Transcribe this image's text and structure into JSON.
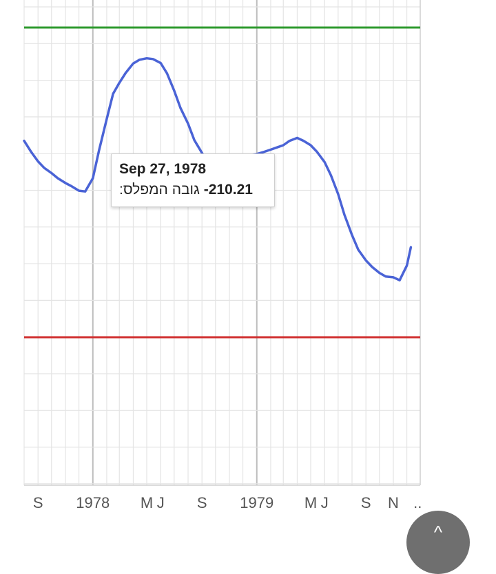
{
  "chart_data": {
    "type": "line",
    "title": "",
    "xlabel": "",
    "ylabel": "",
    "x_tick_labels": [
      "S",
      "1978",
      "M",
      "J",
      "S",
      "1979",
      "M",
      "J",
      "S",
      "N",
      ".."
    ],
    "grid": true,
    "reference_lines": [
      {
        "name": "upper",
        "color": "#2e9a2e"
      },
      {
        "name": "lower",
        "color": "#d03030"
      }
    ],
    "series": [
      {
        "color": "#4a63d6",
        "x": [
          "1977-08-01",
          "1977-08-16",
          "1977-09-01",
          "1977-09-15",
          "1977-10-01",
          "1977-10-15",
          "1977-11-01",
          "1977-11-15",
          "1977-12-01",
          "1977-12-15",
          "1978-01-01",
          "1978-01-15",
          "1978-02-01",
          "1978-02-15",
          "1978-03-01",
          "1978-03-15",
          "1978-04-01",
          "1978-04-15",
          "1978-05-01",
          "1978-05-15",
          "1978-06-01",
          "1978-06-15",
          "1978-07-01",
          "1978-07-15",
          "1978-08-01",
          "1978-08-15",
          "1978-09-01",
          "1978-09-15",
          "1978-09-27",
          "1978-10-15",
          "1978-11-01",
          "1978-11-15",
          "1978-12-01",
          "1978-12-15",
          "1979-01-01",
          "1979-01-15",
          "1979-02-01",
          "1979-02-15",
          "1979-03-01",
          "1979-03-15",
          "1979-04-01",
          "1979-04-15",
          "1979-05-01",
          "1979-05-15",
          "1979-06-01",
          "1979-06-15",
          "1979-07-01",
          "1979-07-15",
          "1979-08-01",
          "1979-08-15",
          "1979-09-01",
          "1979-09-15",
          "1979-10-01",
          "1979-10-15",
          "1979-11-01",
          "1979-11-15",
          "1979-12-01",
          "1979-12-10"
        ],
        "values": [
          -209.4,
          -209.69,
          -209.96,
          -210.14,
          -210.28,
          -210.42,
          -210.55,
          -210.64,
          -210.76,
          -210.78,
          -210.42,
          -209.65,
          -208.8,
          -208.12,
          -207.82,
          -207.55,
          -207.29,
          -207.19,
          -207.15,
          -207.17,
          -207.28,
          -207.56,
          -208.03,
          -208.5,
          -208.93,
          -209.38,
          -209.73,
          -210.02,
          -210.21,
          -210.05,
          -209.98,
          -209.88,
          -209.84,
          -209.79,
          -209.76,
          -209.71,
          -209.64,
          -209.58,
          -209.52,
          -209.4,
          -209.32,
          -209.4,
          -209.52,
          -209.7,
          -209.98,
          -210.34,
          -210.85,
          -211.41,
          -211.97,
          -212.37,
          -212.66,
          -212.84,
          -213.0,
          -213.1,
          -213.12,
          -213.2,
          -212.8,
          -212.3
        ]
      }
    ],
    "tooltip": {
      "date": "Sep 27, 1978",
      "label": "גובה המפלס:",
      "value": "-210.21"
    }
  }
}
